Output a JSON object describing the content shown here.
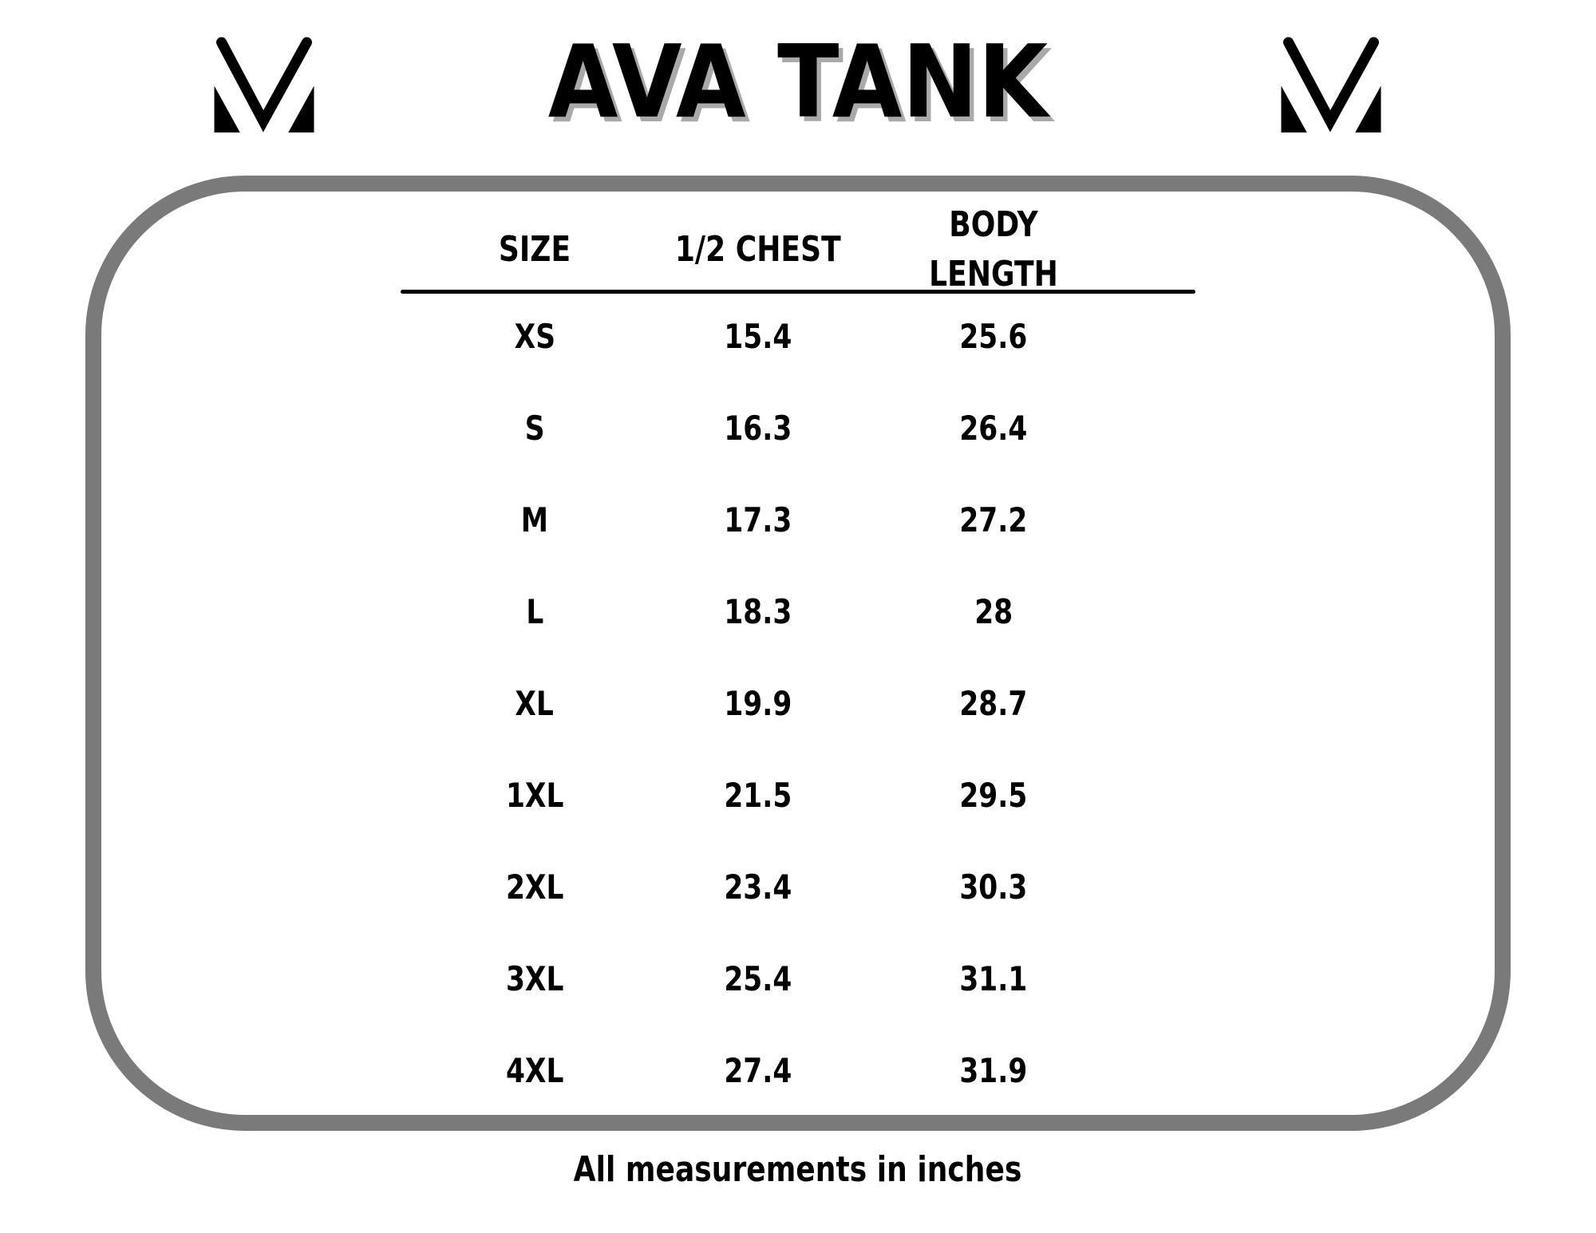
{
  "header": {
    "title": "AVA TANK",
    "logo": "m-monogram"
  },
  "chart_data": {
    "type": "table",
    "title": "AVA TANK",
    "columns": [
      "SIZE",
      "1/2 CHEST",
      "BODY LENGTH"
    ],
    "rows": [
      {
        "size": "XS",
        "half_chest": "15.4",
        "body_length": "25.6"
      },
      {
        "size": "S",
        "half_chest": "16.3",
        "body_length": "26.4"
      },
      {
        "size": "M",
        "half_chest": "17.3",
        "body_length": "27.2"
      },
      {
        "size": "L",
        "half_chest": "18.3",
        "body_length": "28"
      },
      {
        "size": "XL",
        "half_chest": "19.9",
        "body_length": "28.7"
      },
      {
        "size": "1XL",
        "half_chest": "21.5",
        "body_length": "29.5"
      },
      {
        "size": "2XL",
        "half_chest": "23.4",
        "body_length": "30.3"
      },
      {
        "size": "3XL",
        "half_chest": "25.4",
        "body_length": "31.1"
      },
      {
        "size": "4XL",
        "half_chest": "27.4",
        "body_length": "31.9"
      }
    ],
    "note": "All measurements in inches",
    "units": "inches"
  },
  "colors": {
    "text": "#000000",
    "frame_border": "#7a7a7a",
    "title_shadow": "#a9a9a9"
  },
  "footer": {
    "note": "All measurements in inches"
  }
}
